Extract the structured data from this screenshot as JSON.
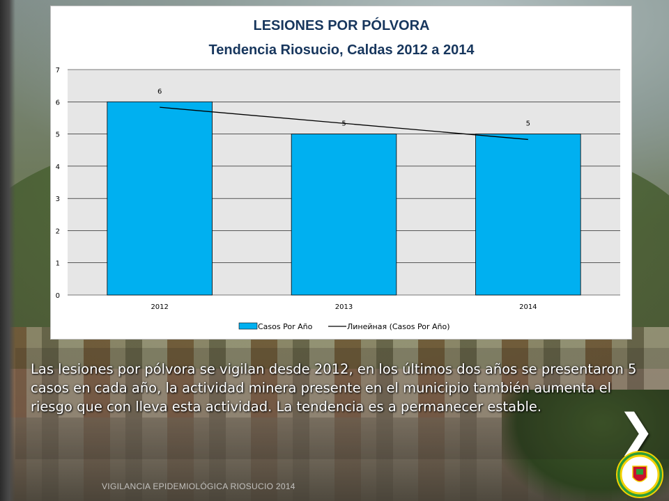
{
  "slide": {
    "body_text": "Las lesiones por pólvora se vigilan desde 2012, en los últimos dos años se presentaron 5 casos en cada año, la actividad minera presente en el municipio también aumenta el riesgo que con lleva esta actividad. La tendencia es a permanecer estable.",
    "footer_text": "VIGILANCIA EPIDEMIOLÓGICA RIOSUCIO 2014",
    "next_arrow_glyph": "❯",
    "seal_text": "ALCALDIA MUNICIPAL RIOSUCIO CALDAS"
  },
  "colors": {
    "bar": "#00b0f0",
    "title": "#17365d",
    "trend_line": "#000000",
    "plot_background": "#e6e6e6",
    "seal_green": "#2c9c3a",
    "seal_gold": "#f3d100"
  },
  "icons": {
    "next": "chevron-right-icon",
    "seal": "municipal-seal-icon"
  },
  "chart_data": {
    "type": "bar",
    "title": "LESIONES POR PÓLVORA",
    "subtitle": "Tendencia Riosucio, Caldas 2012 a 2014",
    "categories": [
      "2012",
      "2013",
      "2014"
    ],
    "series": [
      {
        "name": "Casos Por Año",
        "values": [
          6,
          5,
          5
        ],
        "data_labels": [
          "6",
          "5",
          "5"
        ]
      }
    ],
    "trendline": {
      "name": "Линейная (Casos Por Año)",
      "type": "linear",
      "start": 5.83,
      "end": 4.83
    },
    "ylim": [
      0,
      7
    ],
    "yticks": [
      "0",
      "1",
      "2",
      "3",
      "4",
      "5",
      "6",
      "7"
    ],
    "xlabel": "",
    "ylabel": "",
    "grid": true,
    "legend": "bottom"
  }
}
